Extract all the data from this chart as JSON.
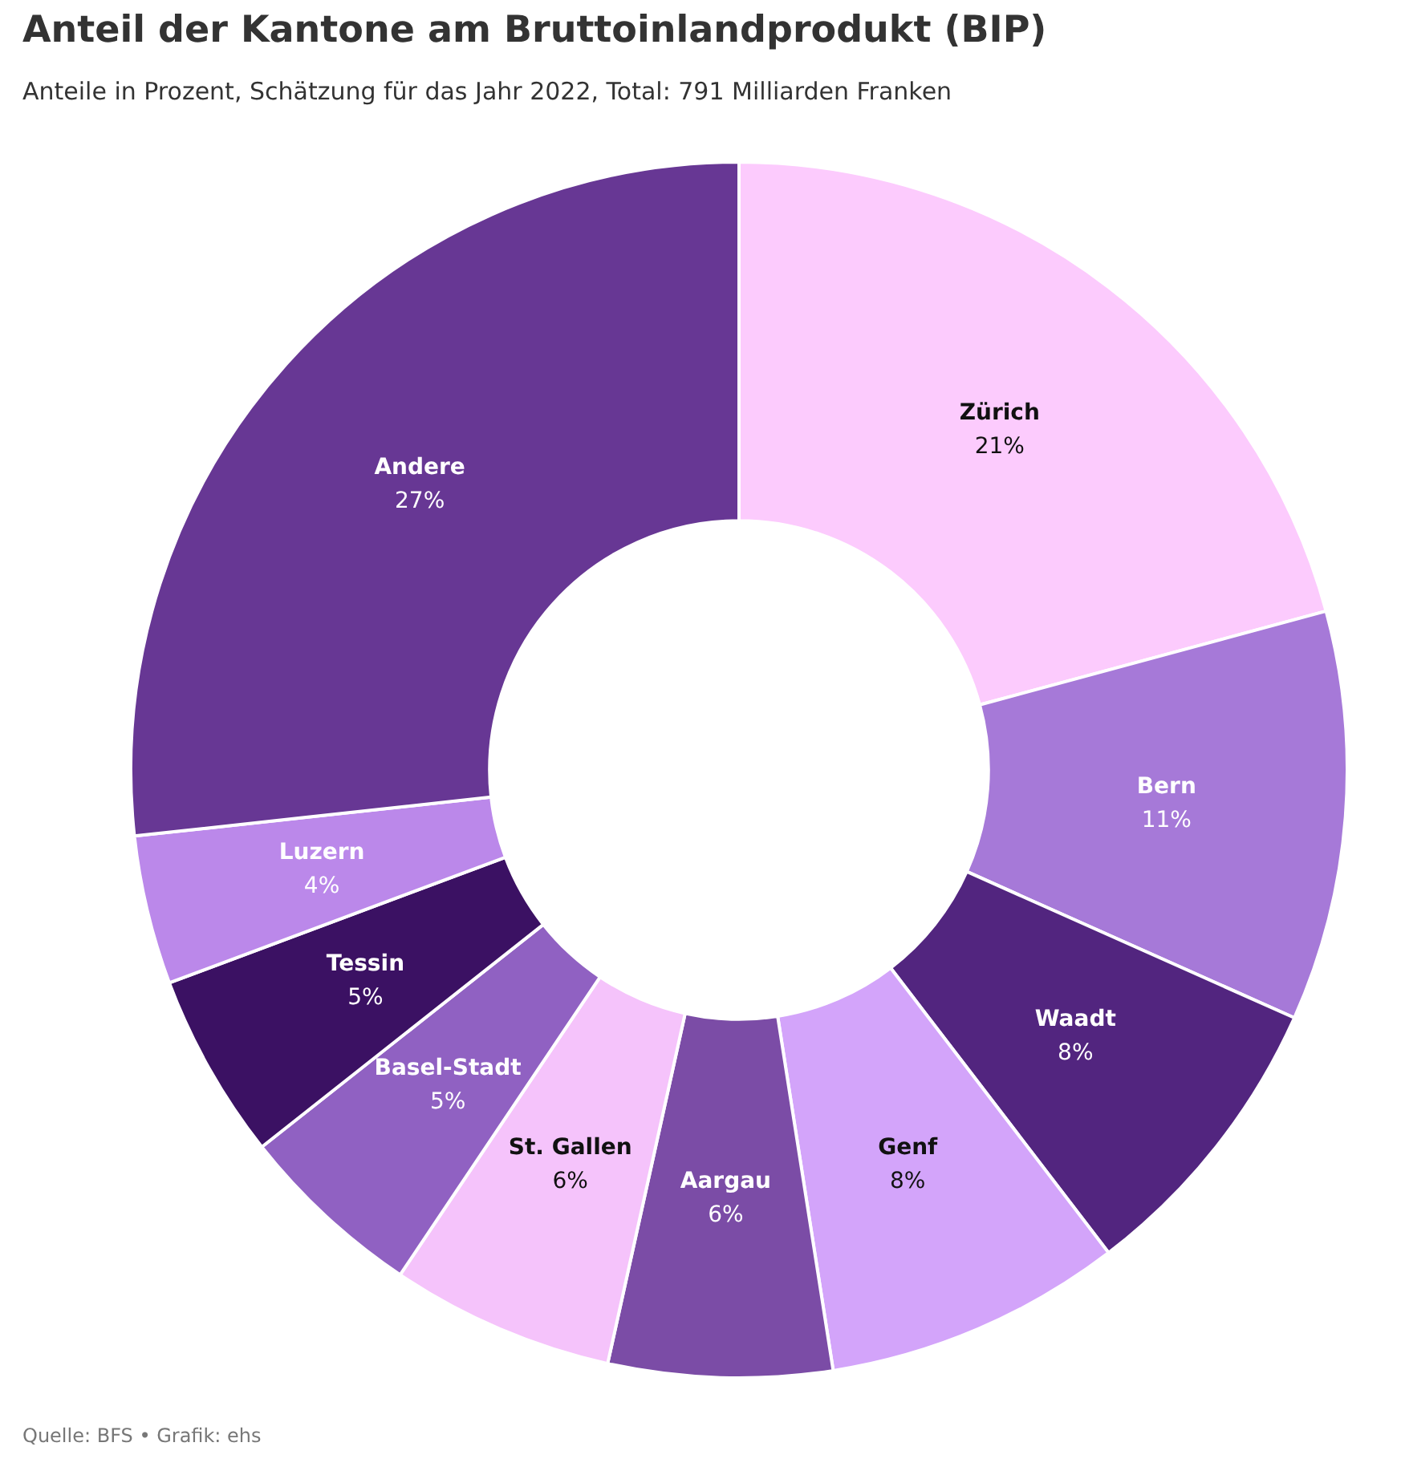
{
  "chart_data": {
    "type": "donut",
    "title": "Anteil der Kantone am Bruttoinlandprodukt (BIP)",
    "subtitle": "Anteile in Prozent, Schätzung für das Jahr 2022, Total: 791 Milliarden Franken",
    "categories": [
      "Zürich",
      "Bern",
      "Waadt",
      "Genf",
      "Aargau",
      "St. Gallen",
      "Basel-Stadt",
      "Tessin",
      "Luzern",
      "Andere"
    ],
    "values": [
      21,
      11,
      8,
      8,
      6,
      6,
      5,
      5,
      4,
      27
    ],
    "colors": [
      "#fccbfd",
      "#a679d8",
      "#52257f",
      "#d3a4fa",
      "#7b4ca6",
      "#f5c3fb",
      "#9061c2",
      "#3b1163",
      "#bb88ea",
      "#673794"
    ],
    "value_labels": [
      "21%",
      "11%",
      "8%",
      "8%",
      "6%",
      "6%",
      "5%",
      "5%",
      "4%",
      "27%"
    ],
    "legend": false,
    "annotations": [
      "Quelle: BFS • Grafik: ehs"
    ]
  }
}
